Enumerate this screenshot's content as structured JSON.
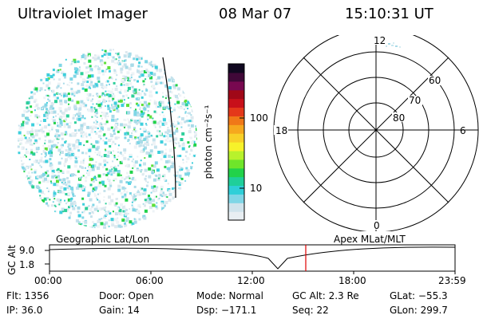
{
  "header": {
    "title": "Ultraviolet Imager",
    "date": "08 Mar 07",
    "time": "15:10:31 UT"
  },
  "colorbar": {
    "label": "photon cm⁻²s⁻¹",
    "tick_100": "100",
    "tick_10": "10",
    "colors": [
      "#e8eef2",
      "#cfe3ec",
      "#7fd6e6",
      "#2ecfd8",
      "#1fcf9a",
      "#22d24a",
      "#6fe52a",
      "#b8f22c",
      "#f7f22a",
      "#f8d028",
      "#f6a81e",
      "#f07818",
      "#e4381a",
      "#c8101a",
      "#a00818",
      "#780850",
      "#400838",
      "#100820"
    ]
  },
  "polar": {
    "lat_labels": [
      "60",
      "70",
      "80"
    ],
    "mlt_labels": {
      "top": "12",
      "left": "18",
      "right": "6",
      "bottom": "0"
    }
  },
  "strip": {
    "ylabel": "GC Alt",
    "y_ticks": [
      "9.0",
      "1.8"
    ],
    "left_title": "Geographic Lat/Lon",
    "right_title": "Apex MLat/MLT",
    "x_ticks": [
      "00:00",
      "06:00",
      "12:00",
      "18:00",
      "23:59"
    ],
    "current_time_hours": 15.175
  },
  "info": {
    "flt": "Flt: 1356",
    "ip": "IP: 36.0",
    "door": "Door: Open",
    "gain": "Gain: 14",
    "mode": "Mode: Normal",
    "dsp": "Dsp: −171.1",
    "gcalt": "GC Alt: 2.3 Re",
    "seq": "Seq: 22",
    "glat": "GLat: −55.3",
    "glon": "GLon: 299.7"
  }
}
